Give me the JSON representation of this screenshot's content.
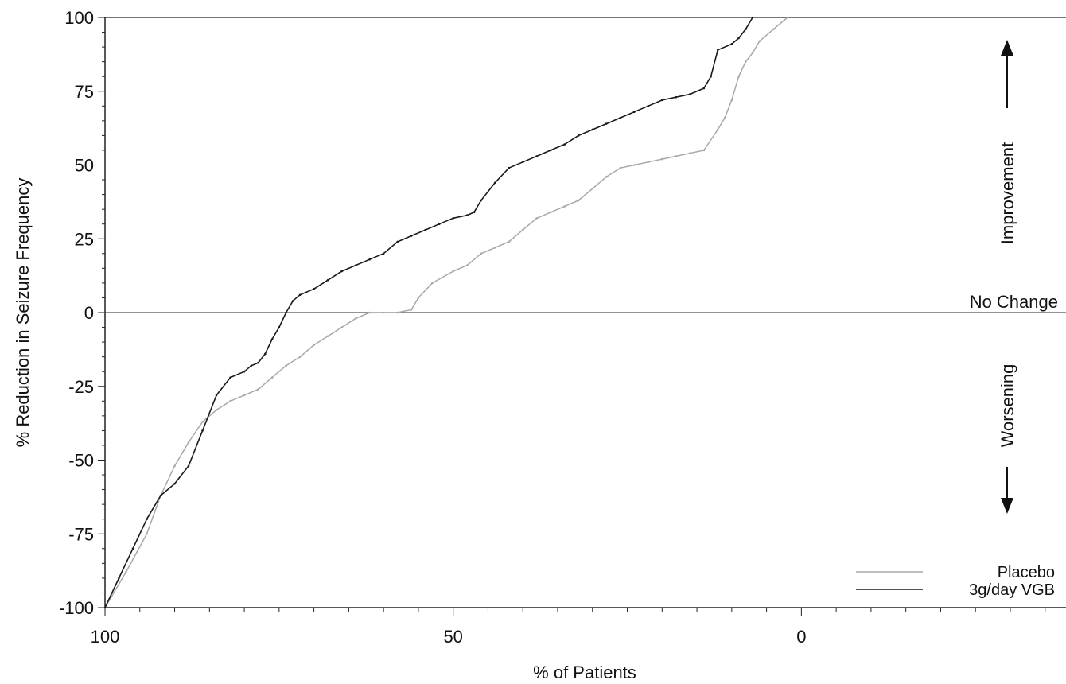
{
  "chart_data": {
    "type": "line",
    "title": "",
    "xlabel": "% of Patients",
    "ylabel": "% Reduction in Seizure Frequency",
    "xlim": [
      100,
      -38
    ],
    "ylim": [
      -100,
      100
    ],
    "x_reversed": true,
    "x_ticks": [
      100,
      50,
      0
    ],
    "x_tick_labels": [
      "100",
      "50",
      "0"
    ],
    "y_ticks": [
      -100,
      -75,
      -50,
      -25,
      0,
      25,
      50,
      75,
      100
    ],
    "y_tick_labels": [
      "-100",
      "-75",
      "-50",
      "-25",
      "0",
      "25",
      "50",
      "75",
      "100"
    ],
    "grid": false,
    "reference_line": {
      "y": 0,
      "label": "No Change"
    },
    "annotations": {
      "improvement": "Improvement",
      "worsening": "Worsening"
    },
    "legend": {
      "placement": "bottom-right",
      "entries": [
        "Placebo",
        "3g/day VGB"
      ]
    },
    "series": [
      {
        "name": "Placebo",
        "color": "#a8a8a8",
        "x": [
          100,
          97,
          94,
          92,
          90,
          88,
          86,
          84,
          82,
          80,
          78,
          76,
          74,
          72,
          70,
          68,
          66,
          64,
          62,
          60,
          58,
          56,
          55,
          53,
          50,
          48,
          46,
          44,
          42,
          40,
          38,
          36,
          34,
          32,
          30,
          28,
          26,
          24,
          22,
          20,
          18,
          16,
          14,
          12,
          11,
          10,
          9,
          8,
          7,
          6,
          4,
          2
        ],
        "y": [
          -100,
          -88,
          -75,
          -62,
          -52,
          -44,
          -37,
          -33,
          -30,
          -28,
          -26,
          -22,
          -18,
          -15,
          -11,
          -8,
          -5,
          -2,
          0,
          0,
          0,
          1,
          5,
          10,
          14,
          16,
          20,
          22,
          24,
          28,
          32,
          34,
          36,
          38,
          42,
          46,
          49,
          50,
          51,
          52,
          53,
          54,
          55,
          62,
          66,
          72,
          80,
          85,
          88,
          92,
          96,
          100
        ]
      },
      {
        "name": "3g/day VGB",
        "color": "#1a1a1a",
        "x": [
          100,
          98,
          96,
          94,
          92,
          90,
          88,
          86,
          84,
          82,
          80,
          79,
          78,
          77,
          76,
          75,
          74,
          73,
          72,
          70,
          68,
          66,
          64,
          62,
          60,
          58,
          56,
          54,
          52,
          50,
          48,
          47,
          46,
          44,
          42,
          40,
          38,
          36,
          34,
          32,
          30,
          28,
          26,
          24,
          22,
          20,
          18,
          16,
          14,
          13,
          12,
          10,
          9,
          8,
          7
        ],
        "y": [
          -100,
          -90,
          -80,
          -70,
          -62,
          -58,
          -52,
          -40,
          -28,
          -22,
          -20,
          -18,
          -17,
          -14,
          -9,
          -5,
          0,
          4,
          6,
          8,
          11,
          14,
          16,
          18,
          20,
          24,
          26,
          28,
          30,
          32,
          33,
          34,
          38,
          44,
          49,
          51,
          53,
          55,
          57,
          60,
          62,
          64,
          66,
          68,
          70,
          72,
          73,
          74,
          76,
          80,
          89,
          91,
          93,
          96,
          100
        ]
      }
    ]
  }
}
